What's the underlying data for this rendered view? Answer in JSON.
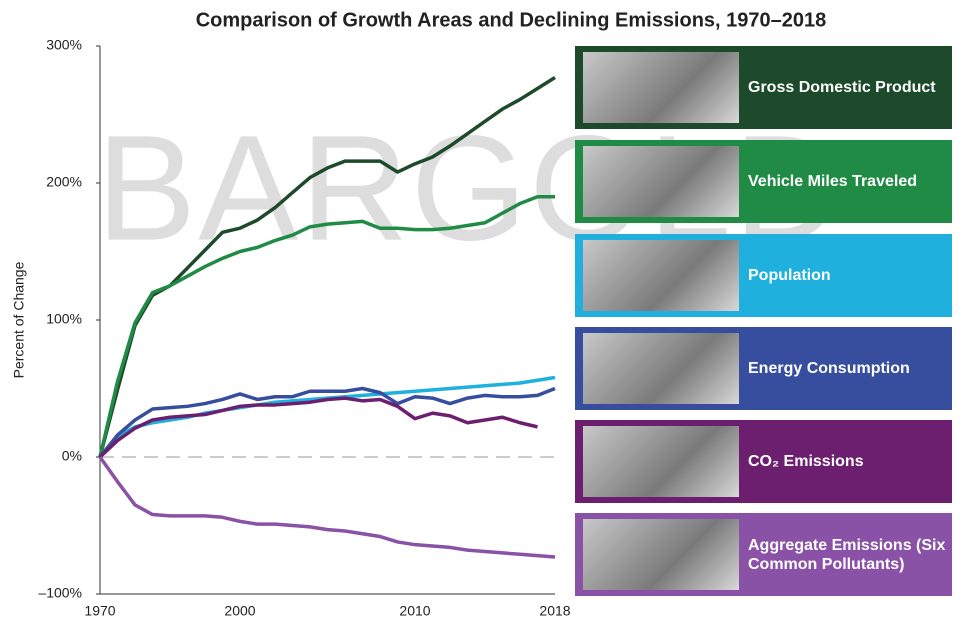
{
  "chart_data": {
    "type": "line",
    "title": "Comparison of Growth Areas and Declining Emissions, 1970–2018",
    "watermark": "BARGOLD",
    "y_label": "Percent of Change",
    "categories": [
      "1970",
      null,
      null,
      null,
      null,
      null,
      null,
      null,
      "2000",
      null,
      null,
      null,
      null,
      null,
      null,
      null,
      null,
      null,
      "2010",
      null,
      null,
      null,
      null,
      null,
      null,
      null,
      "2018"
    ],
    "ylim": [
      -100,
      300
    ],
    "yticks": [
      {
        "value": -100,
        "label": "–100%"
      },
      {
        "value": 0,
        "label": "0%"
      },
      {
        "value": 100,
        "label": "100%"
      },
      {
        "value": 200,
        "label": "200%"
      },
      {
        "value": 300,
        "label": "300%"
      }
    ],
    "zero_line": true,
    "series": [
      {
        "name": "Gross Domestic Product",
        "color": "#1d4a2a",
        "values": [
          0,
          49,
          96,
          118,
          125,
          138,
          151,
          164,
          167,
          173,
          182,
          193,
          204,
          211,
          216,
          216,
          216,
          208,
          214,
          219,
          227,
          236,
          245,
          254,
          261,
          269,
          277
        ]
      },
      {
        "name": "Vehicle Miles Traveled",
        "color": "#1f8b45",
        "values": [
          0,
          55,
          98,
          120,
          125,
          132,
          139,
          145,
          150,
          153,
          158,
          162,
          168,
          170,
          171,
          172,
          167,
          167,
          166,
          166,
          167,
          169,
          171,
          178,
          185,
          190,
          190
        ]
      },
      {
        "name": "Population",
        "color": "#1fb0de",
        "values": [
          0,
          15,
          22,
          25,
          27,
          29,
          32,
          34,
          36,
          38,
          40,
          41,
          42,
          43,
          44,
          45,
          46,
          47,
          48,
          49,
          50,
          51,
          52,
          53,
          54,
          56,
          58
        ]
      },
      {
        "name": "Energy Consumption",
        "color": "#374d9e",
        "values": [
          0,
          16,
          27,
          35,
          36,
          37,
          39,
          42,
          46,
          42,
          44,
          44,
          48,
          48,
          48,
          50,
          47,
          39,
          44,
          43,
          39,
          43,
          45,
          44,
          44,
          45,
          50
        ]
      },
      {
        "name": "CO₂ Emissions",
        "color": "#6c1f6e",
        "values": [
          0,
          12,
          21,
          27,
          29,
          30,
          31,
          34,
          37,
          38,
          38,
          39,
          40,
          42,
          43,
          41,
          42,
          37,
          28,
          32,
          30,
          25,
          27,
          29,
          25,
          22,
          null
        ]
      },
      {
        "name": "Aggregate Emissions (Six Common Pollutants)",
        "color": "#8a52a6",
        "values": [
          0,
          -18,
          -35,
          -42,
          -43,
          -43,
          -43,
          -44,
          -47,
          -49,
          -49,
          -50,
          -51,
          -53,
          -54,
          -56,
          -58,
          -62,
          -64,
          -65,
          -66,
          -68,
          -69,
          -70,
          -71,
          -72,
          -73
        ]
      }
    ]
  }
}
